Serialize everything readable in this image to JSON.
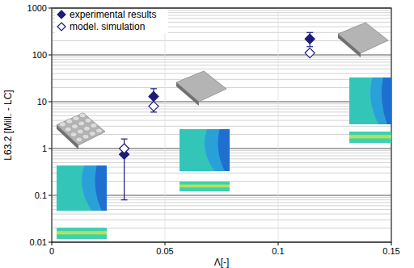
{
  "chart_data": {
    "type": "scatter",
    "y_label": "L63.2 [Mill. - LC]",
    "x_label": "Λ[-]",
    "xlim": [
      0,
      0.15
    ],
    "xticks": [
      0,
      0.05,
      0.1,
      0.15
    ],
    "ylim": [
      0.01,
      1000
    ],
    "yticks": [
      0.01,
      0.1,
      1,
      10,
      100,
      1000
    ],
    "log": "y",
    "grid": true,
    "legend": "upper left",
    "series": [
      {
        "name": "experimental results",
        "color": "#1c1c78",
        "marker": "filled_diamond",
        "x": [
          0.032,
          0.045,
          0.114
        ],
        "values": [
          0.75,
          13,
          220
        ],
        "errors": [
          [
            0.67,
            0.85
          ],
          [
            7,
            6
          ],
          [
            70,
            80
          ]
        ]
      },
      {
        "name": "model. simulation",
        "color": "#1c1c78",
        "marker": "open_diamond",
        "x": [
          0.032,
          0.045,
          0.114
        ],
        "values": [
          1.0,
          8,
          110
        ]
      }
    ]
  }
}
